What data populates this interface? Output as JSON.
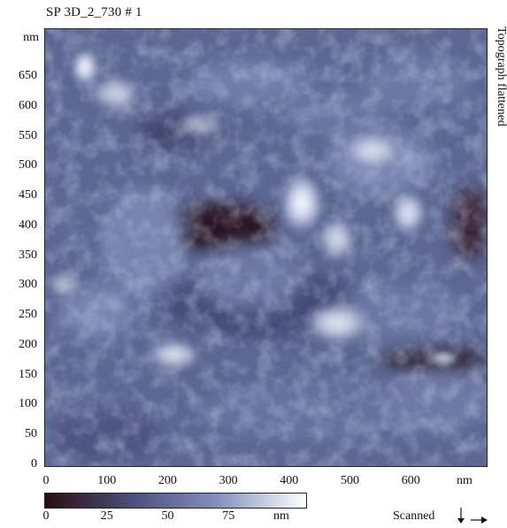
{
  "title": "SP 3D_2_730 # 1",
  "side_label": "Topograph flattened",
  "y_axis": {
    "unit": "nm",
    "ticks": [
      "650",
      "600",
      "550",
      "500",
      "450",
      "400",
      "350",
      "300",
      "250",
      "200",
      "150",
      "100",
      "50",
      "0"
    ]
  },
  "x_axis": {
    "unit": "nm",
    "ticks": [
      "0",
      "100",
      "200",
      "300",
      "400",
      "500",
      "600"
    ]
  },
  "colorbar": {
    "ticks": [
      "0",
      "25",
      "50",
      "75"
    ],
    "unit": "nm",
    "colors": [
      "#2a0d12",
      "#4b4f7a",
      "#8592bd",
      "#ffffff"
    ]
  },
  "scanned_label": "Scanned",
  "colors": {
    "surface_mid": "#5e6b94",
    "surface_dark": "#2b1420",
    "surface_light": "#e6ecfa"
  }
}
